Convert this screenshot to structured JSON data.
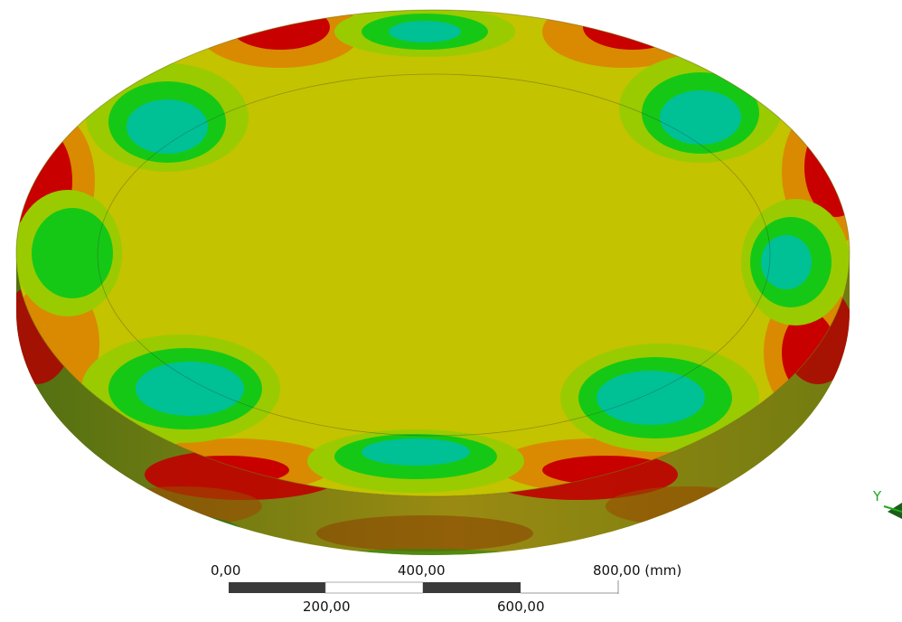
{
  "viewport": {
    "model": "ring-contour-plot",
    "colors": {
      "red": "#d00000",
      "orange": "#cf7a00",
      "yellow": "#c3c300",
      "yellow_green": "#9acb00",
      "green": "#16c816",
      "cyan_green": "#00c096",
      "cyan": "#1aa3c9",
      "blue": "#0b3db0",
      "dark_blue": "#0a1f8c",
      "background": "#ffffff"
    }
  },
  "scale_bar": {
    "labels_top": [
      "0,00",
      "400,00",
      "800,00 (mm)"
    ],
    "labels_bottom": [
      "200,00",
      "600,00"
    ]
  },
  "triad": {
    "axis_label": "Y",
    "axis_color": "#1fa91f"
  }
}
